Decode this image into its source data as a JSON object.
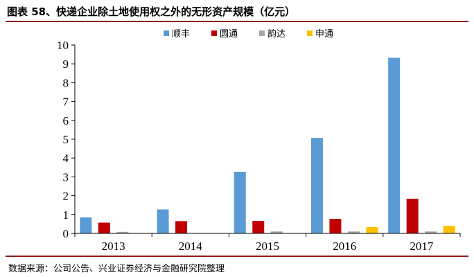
{
  "header": {
    "title": "图表 58、快递企业除土地使用权之外的无形资产规模（亿元）"
  },
  "footer": {
    "source": "数据来源：公司公告、兴业证券经济与金融研究院整理"
  },
  "chart_data": {
    "type": "bar",
    "title": "",
    "xlabel": "",
    "ylabel": "",
    "categories": [
      "2013",
      "2014",
      "2015",
      "2016",
      "2017"
    ],
    "ylim": [
      0,
      10
    ],
    "yticks": [
      0,
      1,
      2,
      3,
      4,
      5,
      6,
      7,
      8,
      9,
      10
    ],
    "grid": false,
    "legend_position": "top",
    "series": [
      {
        "name": "顺丰",
        "color": "#5B9BD5",
        "values": [
          0.85,
          1.27,
          3.27,
          5.07,
          9.32
        ]
      },
      {
        "name": "圆通",
        "color": "#C00000",
        "values": [
          0.57,
          0.65,
          0.66,
          0.77,
          1.84
        ]
      },
      {
        "name": "韵达",
        "color": "#A5A5A5",
        "values": [
          0.08,
          0.02,
          0.1,
          0.1,
          0.1
        ]
      },
      {
        "name": "申通",
        "color": "#FFC000",
        "values": [
          0,
          0,
          0,
          0.33,
          0.4
        ]
      }
    ]
  }
}
